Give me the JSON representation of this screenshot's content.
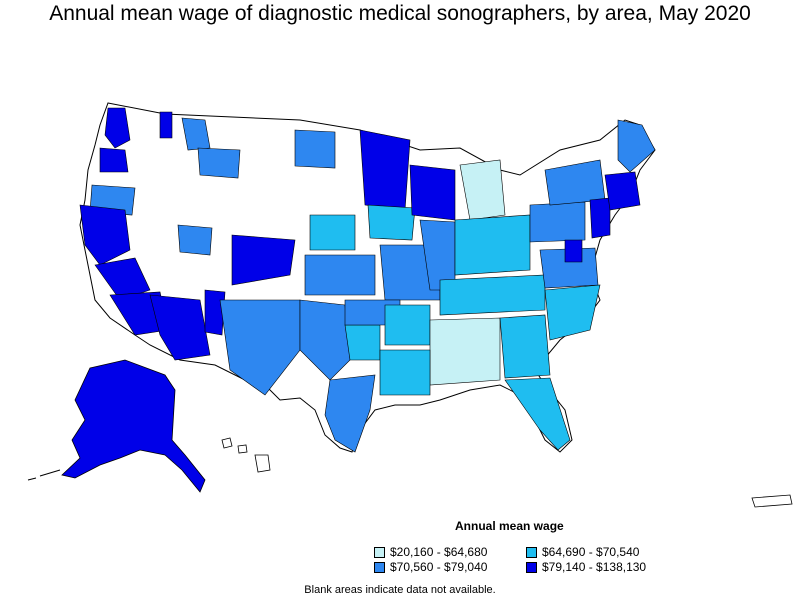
{
  "title": "Annual mean wage of diagnostic medical sonographers, by area, May 2020",
  "legend": {
    "title": "Annual mean wage",
    "items": [
      {
        "label": "$20,160 - $64,680",
        "color": "#c6f1f5"
      },
      {
        "label": "$64,690 - $70,540",
        "color": "#1fbdf0"
      },
      {
        "label": "$70,560 - $79,040",
        "color": "#2e87f0"
      },
      {
        "label": "$79,140 - $138,130",
        "color": "#0000e8"
      }
    ]
  },
  "note": "Blank areas indicate data not available.",
  "colors": {
    "outline": "#000000",
    "no_data": "#ffffff",
    "tier1": "#c6f1f5",
    "tier2": "#1fbdf0",
    "tier3": "#2e87f0",
    "tier4": "#0000e8"
  }
}
